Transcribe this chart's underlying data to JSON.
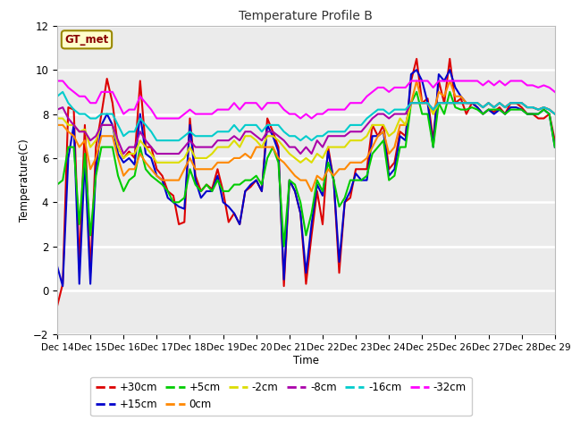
{
  "title": "Temperature Profile B",
  "xlabel": "Time",
  "ylabel": "Temperature(C)",
  "ylim": [
    -2,
    12
  ],
  "annotation": "GT_met",
  "x_labels": [
    "Dec 14",
    "Dec 15",
    "Dec 16",
    "Dec 17",
    "Dec 18",
    "Dec 19",
    "Dec 20",
    "Dec 21",
    "Dec 22",
    "Dec 23",
    "Dec 24",
    "Dec 25",
    "Dec 26",
    "Dec 27",
    "Dec 28",
    "Dec 29"
  ],
  "bg_color": "#e8e8e8",
  "plot_bg": "#ebebeb",
  "series": {
    "+30cm": {
      "color": "#dd0000",
      "lw": 1.5,
      "data": [
        -0.7,
        0.3,
        8.3,
        8.2,
        1.2,
        7.5,
        0.8,
        6.5,
        8.0,
        9.6,
        8.5,
        6.5,
        6.0,
        6.3,
        6.0,
        9.5,
        6.5,
        6.5,
        5.5,
        5.2,
        4.5,
        4.3,
        3.0,
        3.1,
        7.8,
        5.2,
        4.5,
        4.8,
        4.6,
        5.5,
        4.5,
        3.1,
        3.5,
        3.0,
        4.5,
        4.7,
        5.0,
        4.5,
        7.8,
        7.2,
        6.5,
        0.2,
        5.0,
        4.5,
        3.5,
        0.3,
        2.5,
        4.5,
        3.0,
        6.5,
        5.0,
        0.8,
        4.0,
        4.2,
        5.5,
        5.5,
        5.5,
        7.5,
        7.0,
        7.5,
        5.5,
        5.8,
        7.2,
        7.0,
        9.5,
        10.5,
        8.5,
        8.7,
        6.8,
        9.5,
        8.5,
        10.5,
        8.5,
        8.7,
        8.0,
        8.5,
        8.3,
        8.0,
        8.2,
        8.1,
        8.3,
        8.0,
        8.5,
        8.5,
        8.3,
        8.0,
        8.0,
        7.8,
        7.8,
        8.0,
        6.8
      ]
    },
    "+15cm": {
      "color": "#0000cc",
      "lw": 1.5,
      "data": [
        1.1,
        0.2,
        6.0,
        7.5,
        0.3,
        6.0,
        0.3,
        5.5,
        7.5,
        8.0,
        7.5,
        6.2,
        5.8,
        6.0,
        5.7,
        8.0,
        6.2,
        6.0,
        5.2,
        5.0,
        4.2,
        4.0,
        3.8,
        3.7,
        7.5,
        5.0,
        4.2,
        4.5,
        4.5,
        5.2,
        4.0,
        3.8,
        3.5,
        3.0,
        4.5,
        4.8,
        5.0,
        4.5,
        7.5,
        7.0,
        6.3,
        0.5,
        5.0,
        4.5,
        3.5,
        0.8,
        3.0,
        4.8,
        4.3,
        6.3,
        5.0,
        1.3,
        4.0,
        4.5,
        5.3,
        5.0,
        5.0,
        7.0,
        7.0,
        7.2,
        5.2,
        5.5,
        7.0,
        6.8,
        9.8,
        10.0,
        9.5,
        8.5,
        6.5,
        9.8,
        9.5,
        10.0,
        9.2,
        8.8,
        8.5,
        8.5,
        8.3,
        8.0,
        8.2,
        8.0,
        8.2,
        8.0,
        8.3,
        8.3,
        8.2,
        8.0,
        8.0,
        8.0,
        8.2,
        8.0,
        6.5
      ]
    },
    "+5cm": {
      "color": "#00cc00",
      "lw": 1.5,
      "data": [
        4.8,
        5.0,
        6.5,
        6.5,
        3.0,
        6.2,
        2.5,
        5.2,
        6.5,
        6.5,
        6.5,
        5.2,
        4.5,
        5.0,
        5.2,
        6.5,
        5.5,
        5.2,
        5.0,
        4.8,
        4.5,
        4.0,
        4.0,
        4.2,
        5.5,
        4.8,
        4.5,
        4.8,
        4.5,
        5.0,
        4.5,
        4.5,
        4.8,
        4.8,
        5.0,
        5.0,
        5.2,
        4.8,
        6.0,
        6.5,
        5.8,
        2.0,
        5.0,
        4.8,
        4.0,
        2.5,
        3.5,
        5.0,
        4.5,
        5.8,
        5.0,
        3.8,
        4.2,
        5.0,
        5.0,
        5.0,
        5.2,
        6.2,
        6.5,
        6.8,
        5.0,
        5.2,
        6.5,
        6.5,
        8.5,
        9.0,
        8.0,
        8.0,
        6.5,
        8.5,
        8.0,
        9.0,
        8.3,
        8.2,
        8.2,
        8.3,
        8.2,
        8.0,
        8.2,
        8.2,
        8.2,
        8.0,
        8.2,
        8.2,
        8.2,
        8.0,
        8.0,
        8.0,
        8.2,
        8.0,
        6.5
      ]
    },
    "0cm": {
      "color": "#ff8800",
      "lw": 1.5,
      "data": [
        7.5,
        7.5,
        7.2,
        7.0,
        6.5,
        6.8,
        5.5,
        6.0,
        7.0,
        7.0,
        7.0,
        6.0,
        5.2,
        5.5,
        5.5,
        6.2,
        5.8,
        5.5,
        5.2,
        5.0,
        5.0,
        5.0,
        5.0,
        5.5,
        6.0,
        5.5,
        5.5,
        5.5,
        5.5,
        5.8,
        5.8,
        5.8,
        6.0,
        6.0,
        6.2,
        6.0,
        6.5,
        6.5,
        6.5,
        6.5,
        6.0,
        5.8,
        5.5,
        5.2,
        5.0,
        5.0,
        4.5,
        5.2,
        5.0,
        5.5,
        5.2,
        5.5,
        5.5,
        5.8,
        5.8,
        5.8,
        6.0,
        6.5,
        7.0,
        7.2,
        6.2,
        6.5,
        7.5,
        7.5,
        8.5,
        9.5,
        8.5,
        8.5,
        8.0,
        9.0,
        8.8,
        9.5,
        8.8,
        8.8,
        8.5,
        8.5,
        8.5,
        8.3,
        8.5,
        8.3,
        8.5,
        8.3,
        8.5,
        8.5,
        8.5,
        8.3,
        8.3,
        8.2,
        8.3,
        8.2,
        8.0
      ]
    },
    "-2cm": {
      "color": "#dddd00",
      "lw": 1.5,
      "data": [
        7.8,
        7.8,
        7.5,
        7.5,
        7.2,
        7.3,
        6.5,
        6.8,
        7.5,
        7.5,
        7.5,
        6.5,
        6.0,
        6.2,
        6.2,
        6.8,
        6.5,
        6.2,
        5.8,
        5.8,
        5.8,
        5.8,
        5.8,
        6.0,
        6.5,
        6.0,
        6.0,
        6.0,
        6.2,
        6.5,
        6.5,
        6.5,
        6.8,
        6.5,
        7.0,
        7.0,
        6.8,
        6.5,
        7.0,
        7.0,
        6.8,
        6.5,
        6.2,
        6.0,
        5.8,
        6.0,
        5.8,
        6.2,
        6.0,
        6.5,
        6.5,
        6.5,
        6.5,
        6.8,
        6.8,
        6.8,
        7.0,
        7.5,
        7.5,
        7.5,
        7.0,
        7.2,
        7.8,
        7.5,
        8.5,
        8.5,
        8.5,
        8.5,
        8.0,
        8.5,
        8.5,
        8.5,
        8.5,
        8.5,
        8.5,
        8.5,
        8.5,
        8.3,
        8.5,
        8.3,
        8.5,
        8.3,
        8.5,
        8.5,
        8.5,
        8.3,
        8.3,
        8.2,
        8.3,
        8.2,
        8.0
      ]
    },
    "-8cm": {
      "color": "#aa00aa",
      "lw": 1.5,
      "data": [
        8.2,
        8.3,
        7.8,
        7.5,
        7.2,
        7.2,
        6.8,
        7.0,
        7.5,
        7.5,
        7.5,
        6.8,
        6.2,
        6.5,
        6.5,
        7.2,
        6.8,
        6.5,
        6.2,
        6.2,
        6.2,
        6.2,
        6.2,
        6.5,
        6.8,
        6.5,
        6.5,
        6.5,
        6.5,
        6.8,
        6.8,
        6.8,
        7.0,
        6.8,
        7.2,
        7.2,
        7.0,
        6.8,
        7.2,
        7.2,
        7.0,
        6.8,
        6.5,
        6.5,
        6.2,
        6.5,
        6.2,
        6.8,
        6.5,
        7.0,
        7.0,
        7.0,
        7.0,
        7.2,
        7.2,
        7.2,
        7.5,
        7.8,
        8.0,
        8.0,
        7.8,
        8.0,
        8.0,
        8.0,
        8.5,
        8.5,
        8.5,
        8.5,
        8.2,
        8.5,
        8.5,
        8.5,
        8.5,
        8.5,
        8.5,
        8.5,
        8.5,
        8.3,
        8.5,
        8.3,
        8.5,
        8.3,
        8.5,
        8.5,
        8.5,
        8.3,
        8.3,
        8.2,
        8.3,
        8.2,
        8.0
      ]
    },
    "-16cm": {
      "color": "#00cccc",
      "lw": 1.5,
      "data": [
        8.8,
        9.0,
        8.5,
        8.2,
        8.0,
        8.0,
        7.8,
        7.8,
        8.0,
        8.0,
        8.0,
        7.5,
        7.0,
        7.2,
        7.2,
        7.8,
        7.5,
        7.2,
        6.8,
        6.8,
        6.8,
        6.8,
        6.8,
        7.0,
        7.2,
        7.0,
        7.0,
        7.0,
        7.0,
        7.2,
        7.2,
        7.2,
        7.5,
        7.2,
        7.5,
        7.5,
        7.5,
        7.2,
        7.5,
        7.5,
        7.5,
        7.2,
        7.0,
        7.0,
        6.8,
        7.0,
        6.8,
        7.0,
        7.0,
        7.2,
        7.2,
        7.2,
        7.2,
        7.5,
        7.5,
        7.5,
        7.8,
        8.0,
        8.2,
        8.2,
        8.0,
        8.2,
        8.2,
        8.2,
        8.5,
        8.5,
        8.5,
        8.5,
        8.2,
        8.5,
        8.5,
        8.5,
        8.5,
        8.5,
        8.5,
        8.5,
        8.5,
        8.3,
        8.5,
        8.3,
        8.5,
        8.3,
        8.5,
        8.5,
        8.5,
        8.3,
        8.3,
        8.2,
        8.3,
        8.2,
        8.0
      ]
    },
    "-32cm": {
      "color": "#ff00ff",
      "lw": 1.5,
      "data": [
        9.5,
        9.5,
        9.2,
        9.0,
        8.8,
        8.8,
        8.5,
        8.5,
        9.0,
        9.0,
        9.0,
        8.5,
        8.0,
        8.2,
        8.2,
        8.8,
        8.5,
        8.2,
        7.8,
        7.8,
        7.8,
        7.8,
        7.8,
        8.0,
        8.2,
        8.0,
        8.0,
        8.0,
        8.0,
        8.2,
        8.2,
        8.2,
        8.5,
        8.2,
        8.5,
        8.5,
        8.5,
        8.2,
        8.5,
        8.5,
        8.5,
        8.2,
        8.0,
        8.0,
        7.8,
        8.0,
        7.8,
        8.0,
        8.0,
        8.2,
        8.2,
        8.2,
        8.2,
        8.5,
        8.5,
        8.5,
        8.8,
        9.0,
        9.2,
        9.2,
        9.0,
        9.2,
        9.2,
        9.2,
        9.5,
        9.5,
        9.5,
        9.5,
        9.2,
        9.5,
        9.5,
        9.5,
        9.5,
        9.5,
        9.5,
        9.5,
        9.5,
        9.3,
        9.5,
        9.3,
        9.5,
        9.3,
        9.5,
        9.5,
        9.5,
        9.3,
        9.3,
        9.2,
        9.3,
        9.2,
        9.0
      ]
    }
  },
  "legend_row1": [
    "+30cm",
    "+15cm",
    "+5cm",
    "0cm",
    "-2cm",
    "-8cm"
  ],
  "legend_row2": [
    "-16cm",
    "-32cm"
  ]
}
